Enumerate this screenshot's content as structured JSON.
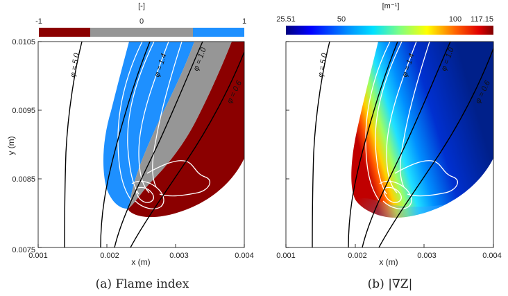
{
  "chart_data": [
    {
      "type": "heatmap",
      "panel_caption": "(a) Flame index",
      "colorbar": {
        "unit_label": "[-]",
        "tick_labels": [
          "-1",
          "0",
          "1"
        ],
        "colors": [
          "#8b0000",
          "#969696",
          "#1e90ff"
        ]
      },
      "xlabel": "x (m)",
      "ylabel": "y (m)",
      "xlim": [
        0.001,
        0.004
      ],
      "ylim": [
        0.0075,
        0.0105
      ],
      "xticks": [
        "0.001",
        "0.002",
        "0.003",
        "0.004"
      ],
      "yticks": [
        "0.0075",
        "0.0085",
        "0.0095",
        "0.0105"
      ],
      "iso_labels": [
        "φ = 5.0",
        "φ = 1.4",
        "φ = 1.0",
        "φ = 0.6"
      ]
    },
    {
      "type": "heatmap",
      "panel_caption": "(b) |∇Z|",
      "colorbar": {
        "unit_label": "[m⁻¹]",
        "tick_labels": [
          "25.51",
          "50",
          "100",
          "117.15"
        ],
        "colors": [
          "#00007f",
          "#0050ff",
          "#00d0ff",
          "#70ffa0",
          "#ffff00",
          "#ff8000",
          "#ff0000",
          "#7f0000"
        ]
      },
      "xlabel": "x (m)",
      "xlim": [
        0.001,
        0.004
      ],
      "xticks": [
        "0.001",
        "0.002",
        "0.003",
        "0.004"
      ],
      "iso_labels": [
        "φ = 5.0",
        "φ = 1.4",
        "φ = 1.0",
        "φ = 0.6"
      ]
    }
  ]
}
